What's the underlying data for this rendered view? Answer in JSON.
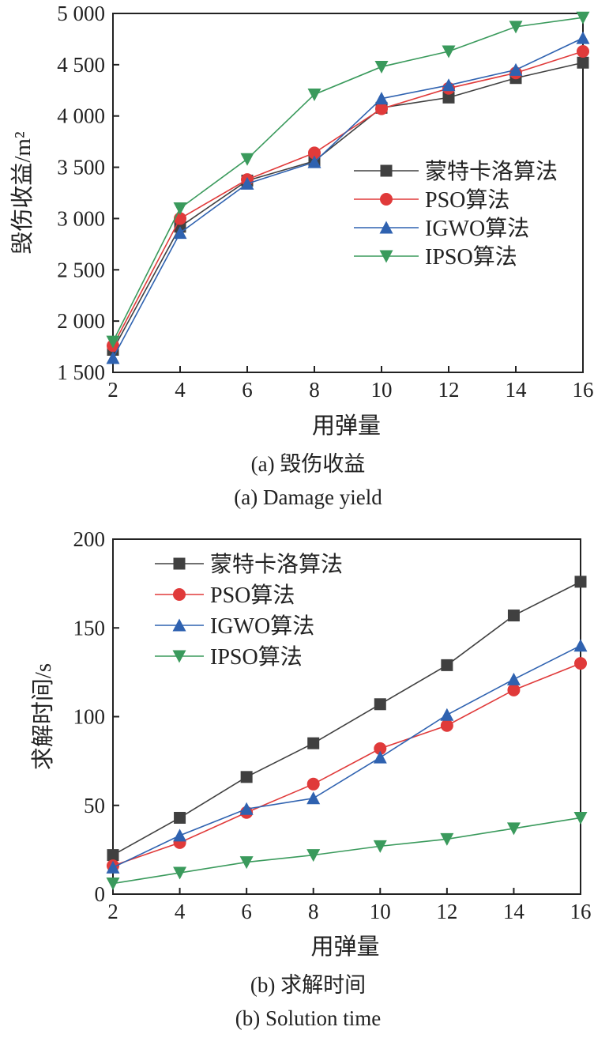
{
  "chart_data": [
    {
      "type": "line",
      "caption_cn": "(a) 毁伤收益",
      "caption_en": "(a) Damage yield",
      "xlabel": "用弹量",
      "ylabel": "毁伤收益/m²",
      "x": [
        2,
        4,
        6,
        8,
        10,
        12,
        14,
        16
      ],
      "xlim": [
        2,
        16
      ],
      "ylim": [
        1500,
        5000
      ],
      "xticks": [
        "2",
        "4",
        "6",
        "8",
        "10",
        "12",
        "14",
        "16"
      ],
      "yticks": [
        "1 500",
        "2 000",
        "2 500",
        "3 000",
        "3 500",
        "4 000",
        "4 500",
        "5 000"
      ],
      "legend_position": "center-right",
      "series": [
        {
          "name": "蒙特卡洛算法",
          "color": "#404040",
          "marker": "square",
          "values": [
            1720,
            2920,
            3370,
            3560,
            4080,
            4180,
            4370,
            4520
          ]
        },
        {
          "name": "PSO算法",
          "color": "#e03a3a",
          "marker": "circle",
          "values": [
            1760,
            3000,
            3380,
            3640,
            4070,
            4270,
            4420,
            4630
          ]
        },
        {
          "name": "IGWO算法",
          "color": "#2f62b0",
          "marker": "triangle-up",
          "values": [
            1640,
            2860,
            3340,
            3550,
            4170,
            4300,
            4450,
            4760
          ]
        },
        {
          "name": "IPSO算法",
          "color": "#3a9a5c",
          "marker": "triangle-down",
          "values": [
            1800,
            3100,
            3580,
            4210,
            4480,
            4630,
            4870,
            4960
          ]
        }
      ]
    },
    {
      "type": "line",
      "caption_cn": "(b) 求解时间",
      "caption_en": "(b) Solution time",
      "xlabel": "用弹量",
      "ylabel": "求解时间/s",
      "x": [
        2,
        4,
        6,
        8,
        10,
        12,
        14,
        16
      ],
      "xlim": [
        2,
        16
      ],
      "ylim": [
        0,
        200
      ],
      "xticks": [
        "2",
        "4",
        "6",
        "8",
        "10",
        "12",
        "14",
        "16"
      ],
      "yticks": [
        "0",
        "50",
        "100",
        "150",
        "200"
      ],
      "legend_position": "top-left",
      "series": [
        {
          "name": "蒙特卡洛算法",
          "color": "#404040",
          "marker": "square",
          "values": [
            22,
            43,
            66,
            85,
            107,
            129,
            157,
            176
          ]
        },
        {
          "name": "PSO算法",
          "color": "#e03a3a",
          "marker": "circle",
          "values": [
            16,
            29,
            46,
            62,
            82,
            95,
            115,
            130
          ]
        },
        {
          "name": "IGWO算法",
          "color": "#2f62b0",
          "marker": "triangle-up",
          "values": [
            15,
            33,
            48,
            54,
            77,
            101,
            121,
            140
          ]
        },
        {
          "name": "IPSO算法",
          "color": "#3a9a5c",
          "marker": "triangle-down",
          "values": [
            6,
            12,
            18,
            22,
            27,
            31,
            37,
            43
          ]
        }
      ]
    }
  ]
}
